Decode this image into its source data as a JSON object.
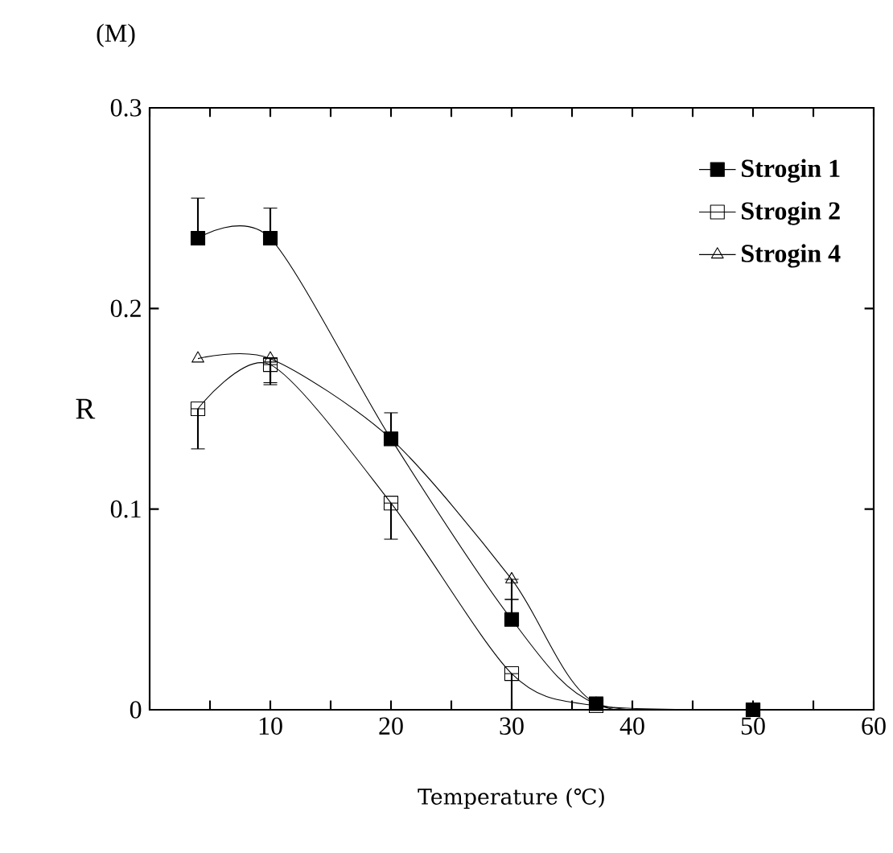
{
  "chart_data": {
    "type": "line",
    "xlabel": "Temperature (℃)",
    "ylabel": "R",
    "annotations": [
      "(M)"
    ],
    "xlim": [
      0,
      60
    ],
    "ylim": [
      0,
      0.3
    ],
    "xticks": [
      {
        "value": 0,
        "label": null
      },
      {
        "value": 5,
        "label": null
      },
      10,
      {
        "value": 15,
        "label": null
      },
      20,
      {
        "value": 25,
        "label": null
      },
      30,
      {
        "value": 35,
        "label": null
      },
      40,
      {
        "value": 45,
        "label": null
      },
      50,
      {
        "value": 55,
        "label": null
      },
      60
    ],
    "yticks": [
      0,
      0.1,
      0.2,
      0.3
    ],
    "x": [
      4,
      10,
      20,
      30,
      37,
      50
    ],
    "legend": "top right",
    "line_style": "solid",
    "series": [
      {
        "name": "Strogin 1",
        "color": "#000000",
        "marker": "square",
        "values": [
          0.235,
          0.235,
          0.135,
          0.045,
          0.003,
          0
        ],
        "errors": [
          [
            0.235,
            0.255
          ],
          [
            0.235,
            0.25
          ],
          [
            0.135,
            0.148
          ],
          [
            0.045,
            0.055
          ],
          null,
          null
        ]
      },
      {
        "name": "Strogin 2",
        "color": "#000000",
        "marker": "square",
        "values": [
          0.15,
          0.172,
          0.103,
          0.018,
          0.002,
          0
        ],
        "errors": [
          [
            0.13,
            0.15
          ],
          [
            0.162,
            0.172
          ],
          [
            0.085,
            0.103
          ],
          [
            0,
            0.018
          ],
          null,
          null
        ]
      },
      {
        "name": "Strogin 4",
        "color": "#000000",
        "marker": "triangle",
        "values": [
          0.175,
          0.175,
          0.135,
          0.065,
          0.003,
          0
        ],
        "errors": [
          null,
          [
            0.163,
            0.175
          ],
          null,
          [
            0.055,
            0.065
          ],
          null,
          null
        ]
      }
    ]
  }
}
